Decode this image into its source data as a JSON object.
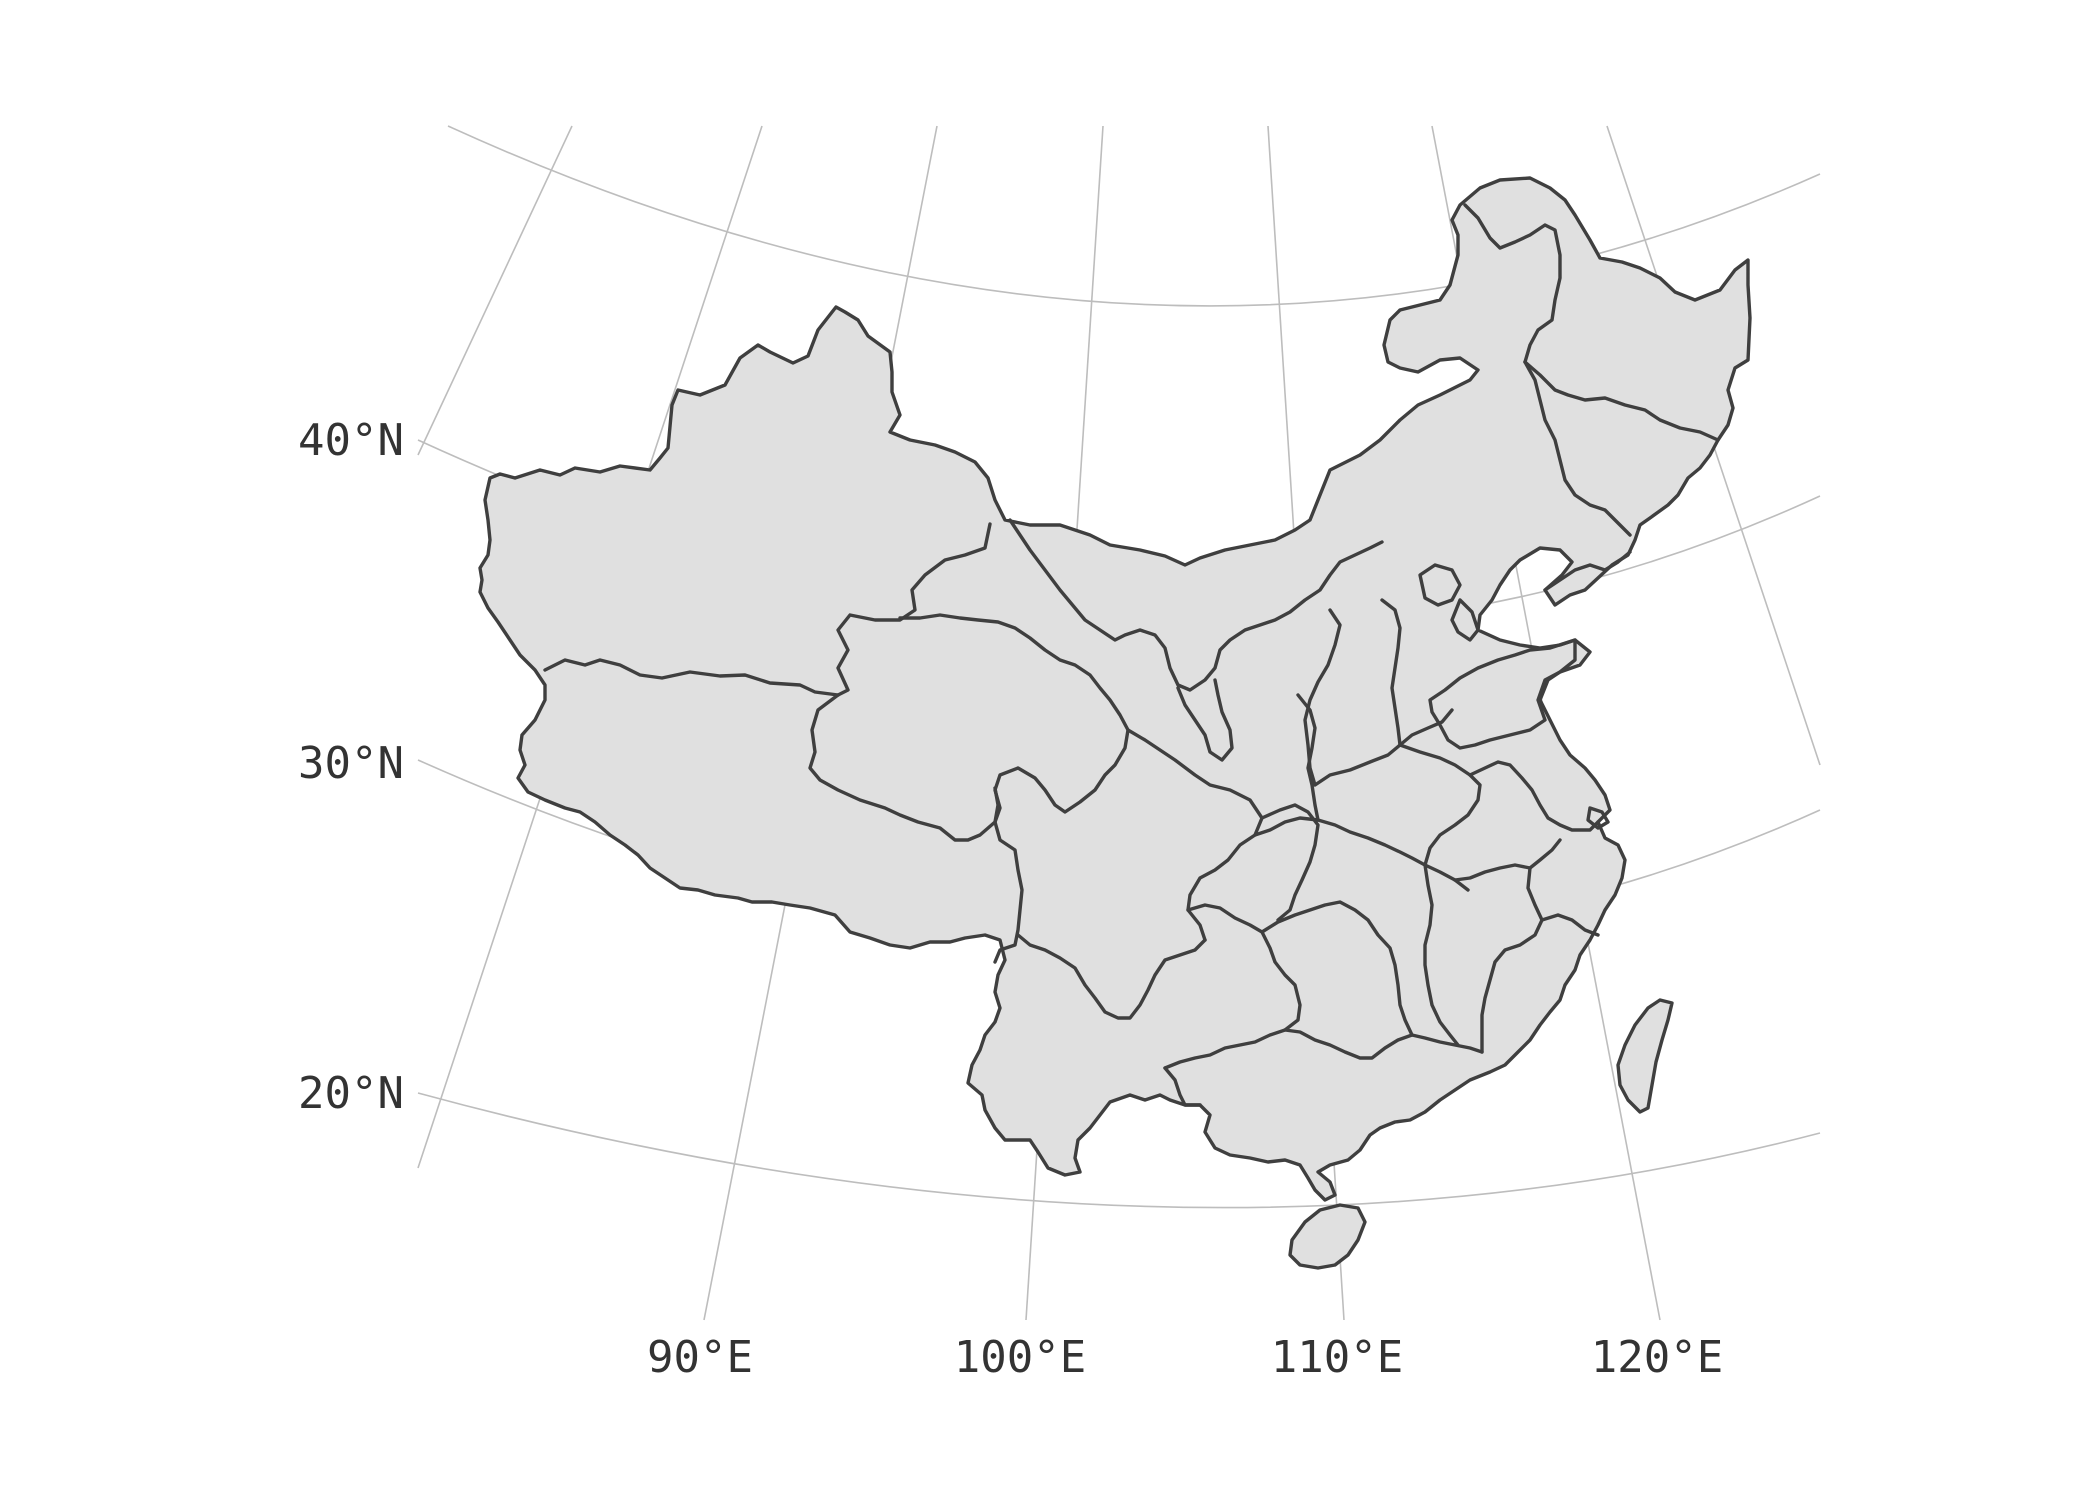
{
  "map": {
    "region": "China",
    "fill_color": "#e0e0e0",
    "border_color": "#3f3f3f",
    "graticule_color": "#bdbdbd",
    "background": "#ffffff",
    "latitude_labels": [
      "40°N",
      "30°N",
      "20°N"
    ],
    "longitude_labels": [
      "90°E",
      "100°E",
      "110°E",
      "120°E"
    ]
  }
}
